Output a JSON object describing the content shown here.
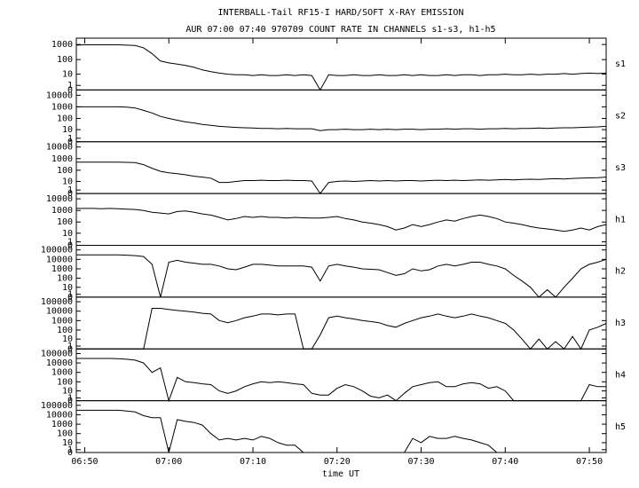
{
  "chart_data": {
    "type": "line",
    "title": "INTERBALL-Tail RF15-I HARD/SOFT X-RAY EMISSION",
    "subtitle": "AUR 07:00 07:40 970709  COUNT RATE IN CHANNELS s1-s3, h1-h5",
    "xlabel": "time UT",
    "yscale": "log1p",
    "xlim": [
      "06:49",
      "07:52"
    ],
    "xticks": [
      "06:50",
      "07:00",
      "07:10",
      "07:20",
      "07:30",
      "07:40",
      "07:50"
    ],
    "x": [
      "06:49",
      "06:50",
      "06:51",
      "06:52",
      "06:53",
      "06:54",
      "06:55",
      "06:56",
      "06:57",
      "06:58",
      "06:59",
      "07:00",
      "07:01",
      "07:02",
      "07:03",
      "07:04",
      "07:05",
      "07:06",
      "07:07",
      "07:08",
      "07:09",
      "07:10",
      "07:11",
      "07:12",
      "07:13",
      "07:14",
      "07:15",
      "07:16",
      "07:17",
      "07:18",
      "07:19",
      "07:20",
      "07:21",
      "07:22",
      "07:23",
      "07:24",
      "07:25",
      "07:26",
      "07:27",
      "07:28",
      "07:29",
      "07:30",
      "07:31",
      "07:32",
      "07:33",
      "07:34",
      "07:35",
      "07:36",
      "07:37",
      "07:38",
      "07:39",
      "07:40",
      "07:41",
      "07:42",
      "07:43",
      "07:44",
      "07:45",
      "07:46",
      "07:47",
      "07:48",
      "07:49",
      "07:50",
      "07:51",
      "07:52"
    ],
    "series": [
      {
        "name": "s1",
        "color": "#000000",
        "ylim": [
          0,
          2000
        ],
        "yticks": [
          0,
          1,
          10,
          100,
          1000
        ],
        "values": [
          900,
          950,
          950,
          950,
          950,
          950,
          900,
          850,
          600,
          250,
          80,
          60,
          50,
          40,
          30,
          20,
          15,
          12,
          10,
          9,
          9,
          8,
          9,
          8,
          8,
          9,
          8,
          9,
          8,
          0,
          9,
          8,
          8,
          9,
          8,
          8,
          9,
          8,
          8,
          9,
          8,
          9,
          8,
          8,
          9,
          8,
          9,
          9,
          8,
          9,
          9,
          10,
          9,
          9,
          10,
          9,
          10,
          10,
          11,
          10,
          11,
          12,
          11,
          12
        ]
      },
      {
        "name": "s2",
        "color": "#000000",
        "ylim": [
          0,
          20000
        ],
        "yticks": [
          0,
          1,
          10,
          100,
          1000,
          10000
        ],
        "values": [
          1000,
          1000,
          1000,
          1000,
          1000,
          1000,
          950,
          800,
          500,
          300,
          150,
          100,
          70,
          50,
          40,
          30,
          25,
          20,
          18,
          16,
          15,
          14,
          13,
          13,
          12,
          13,
          12,
          12,
          12,
          8,
          10,
          10,
          11,
          10,
          10,
          11,
          10,
          11,
          10,
          11,
          11,
          10,
          11,
          11,
          12,
          11,
          12,
          12,
          11,
          12,
          12,
          13,
          12,
          13,
          13,
          14,
          13,
          14,
          15,
          15,
          16,
          17,
          18,
          20
        ]
      },
      {
        "name": "s3",
        "color": "#000000",
        "ylim": [
          0,
          20000
        ],
        "yticks": [
          0,
          1,
          10,
          100,
          1000,
          10000
        ],
        "values": [
          500,
          500,
          500,
          500,
          500,
          500,
          480,
          450,
          300,
          150,
          80,
          60,
          50,
          40,
          30,
          25,
          20,
          8,
          8,
          10,
          12,
          12,
          13,
          12,
          12,
          13,
          12,
          12,
          11,
          0,
          8,
          10,
          11,
          10,
          11,
          12,
          11,
          12,
          11,
          12,
          12,
          11,
          12,
          13,
          12,
          13,
          12,
          13,
          14,
          13,
          14,
          15,
          14,
          15,
          16,
          15,
          17,
          18,
          17,
          19,
          20,
          21,
          22,
          25
        ]
      },
      {
        "name": "h1",
        "color": "#000000",
        "ylim": [
          0,
          20000
        ],
        "yticks": [
          0,
          1,
          10,
          100,
          1000,
          10000
        ],
        "values": [
          1500,
          1500,
          1500,
          1400,
          1500,
          1400,
          1300,
          1200,
          1000,
          700,
          600,
          500,
          800,
          900,
          700,
          500,
          400,
          250,
          150,
          200,
          300,
          250,
          300,
          250,
          250,
          220,
          250,
          230,
          220,
          220,
          250,
          300,
          200,
          150,
          100,
          80,
          60,
          40,
          20,
          30,
          60,
          40,
          60,
          100,
          150,
          120,
          200,
          300,
          400,
          300,
          200,
          100,
          80,
          60,
          40,
          30,
          25,
          20,
          15,
          20,
          30,
          20,
          40,
          60
        ]
      },
      {
        "name": "h2",
        "color": "#000000",
        "ylim": [
          0,
          200000
        ],
        "yticks": [
          0,
          1,
          10,
          100,
          1000,
          10000,
          100000
        ],
        "values": [
          30000,
          30000,
          30000,
          30000,
          30000,
          30000,
          28000,
          25000,
          20000,
          3000,
          0,
          5000,
          8000,
          5000,
          4000,
          3000,
          3000,
          2000,
          1000,
          800,
          1500,
          3000,
          3000,
          2500,
          2000,
          2000,
          2000,
          2000,
          1500,
          50,
          2000,
          3000,
          2000,
          1500,
          1000,
          900,
          800,
          400,
          200,
          300,
          1000,
          600,
          800,
          2000,
          3000,
          2000,
          3000,
          5000,
          5000,
          3000,
          2000,
          1000,
          200,
          50,
          10,
          0,
          5,
          0,
          10,
          100,
          1000,
          3000,
          5000,
          10000
        ]
      },
      {
        "name": "h3",
        "color": "#000000",
        "ylim": [
          0,
          200000
        ],
        "yticks": [
          0,
          1,
          10,
          100,
          1000,
          10000,
          100000
        ],
        "values": [
          0,
          0,
          0,
          0,
          0,
          0,
          0,
          0,
          0,
          20000,
          20000,
          15000,
          12000,
          10000,
          8000,
          6000,
          5000,
          1000,
          600,
          1000,
          2000,
          3000,
          5000,
          5000,
          4000,
          5000,
          5000,
          0,
          0,
          30,
          2000,
          3000,
          2000,
          1500,
          1000,
          800,
          600,
          300,
          200,
          500,
          1000,
          2000,
          3000,
          5000,
          3000,
          2000,
          3000,
          5000,
          3000,
          2000,
          1000,
          500,
          100,
          10,
          0,
          10,
          0,
          5,
          0,
          20,
          0,
          100,
          200,
          500
        ]
      },
      {
        "name": "h4",
        "color": "#000000",
        "ylim": [
          0,
          200000
        ],
        "yticks": [
          0,
          1,
          10,
          100,
          1000,
          10000,
          100000
        ],
        "values": [
          30000,
          30000,
          30000,
          30000,
          30000,
          28000,
          25000,
          20000,
          10000,
          1000,
          3000,
          0,
          300,
          100,
          80,
          60,
          50,
          10,
          5,
          10,
          30,
          60,
          100,
          80,
          100,
          80,
          60,
          50,
          5,
          3,
          3,
          20,
          50,
          30,
          10,
          2,
          1,
          3,
          0,
          5,
          30,
          50,
          80,
          100,
          30,
          30,
          60,
          80,
          60,
          20,
          30,
          10,
          0,
          0,
          0,
          0,
          0,
          0,
          0,
          0,
          0,
          50,
          30,
          30
        ]
      },
      {
        "name": "h5",
        "color": "#000000",
        "ylim": [
          0,
          200000
        ],
        "yticks": [
          0,
          1,
          10,
          100,
          1000,
          10000,
          100000
        ],
        "values": [
          30000,
          30000,
          30000,
          30000,
          30000,
          30000,
          25000,
          20000,
          8000,
          5000,
          5000,
          0,
          3000,
          2000,
          1500,
          800,
          100,
          20,
          30,
          20,
          30,
          20,
          50,
          30,
          10,
          5,
          5,
          0,
          0,
          0,
          0,
          0,
          0,
          0,
          0,
          0,
          0,
          0,
          0,
          0,
          30,
          10,
          50,
          30,
          30,
          50,
          30,
          20,
          10,
          5,
          0,
          0,
          0,
          0,
          0,
          0,
          0,
          0,
          0,
          0,
          0,
          0,
          0,
          0
        ]
      }
    ]
  }
}
